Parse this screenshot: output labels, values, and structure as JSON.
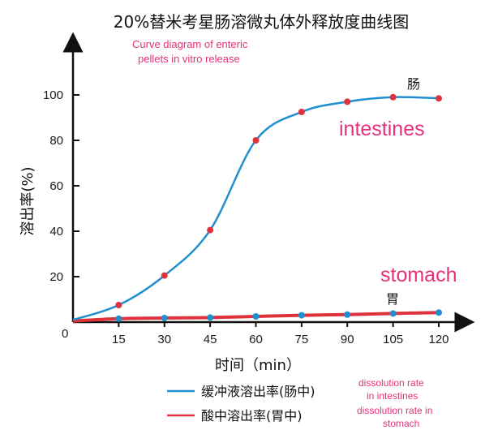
{
  "chart_data": {
    "type": "line",
    "title": "20%替米考星肠溶微丸体外释放度曲线图",
    "title_en": "Curve diagram of enteric pellets in vitro release",
    "xlabel": "时间（min）",
    "ylabel": "溶出率(%)",
    "x": [
      0,
      15,
      30,
      45,
      60,
      75,
      90,
      105,
      120
    ],
    "x_ticks": [
      15,
      30,
      45,
      60,
      75,
      90,
      105,
      120
    ],
    "y_ticks": [
      20,
      40,
      60,
      80,
      100
    ],
    "origin_label": "0",
    "xlim": [
      0,
      120
    ],
    "ylim": [
      -5,
      107
    ],
    "grid": false,
    "legend_position": "bottom-center",
    "series": [
      {
        "name": "缓冲液溶出率(肠中)",
        "name_en": "dissolution rate in intestines",
        "color": "#1f8fd0",
        "marker_color": "#e0323c",
        "values": [
          1,
          7.5,
          20.5,
          40.5,
          80,
          92.5,
          97,
          99,
          98.5
        ],
        "end_label": "肠",
        "annotation": "intestines"
      },
      {
        "name": "酸中溶出率(胃中)",
        "name_en": "dissolution rate in stomach",
        "color": "#e0323c",
        "marker_color": "#1f8fd0",
        "values": [
          0.5,
          1.5,
          1.8,
          2,
          2.5,
          3,
          3.3,
          3.8,
          4.2
        ],
        "end_label": "胃",
        "annotation": "stomach"
      }
    ]
  }
}
